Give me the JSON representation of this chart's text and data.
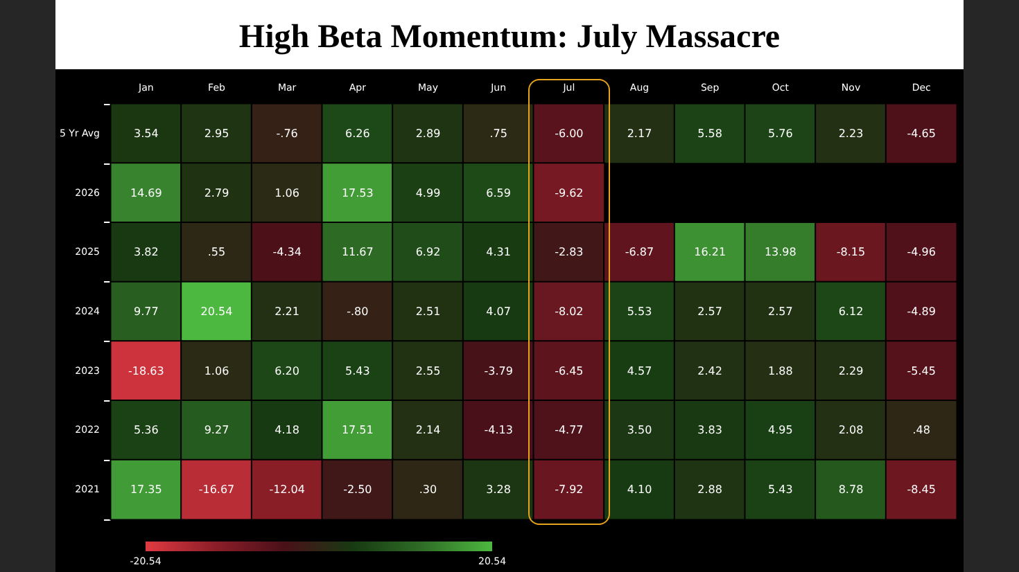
{
  "chart_data": {
    "type": "heatmap",
    "title": "High Beta Momentum: July Massacre",
    "categories": [
      "Jan",
      "Feb",
      "Mar",
      "Apr",
      "May",
      "Jun",
      "Jul",
      "Aug",
      "Sep",
      "Oct",
      "Nov",
      "Dec"
    ],
    "y_categories": [
      "5 Yr Avg",
      "2026",
      "2025",
      "2024",
      "2023",
      "2022",
      "2021"
    ],
    "cells": [
      [
        3.54,
        2.95,
        -0.76,
        6.26,
        2.89,
        0.75,
        -6.0,
        2.17,
        5.58,
        5.76,
        2.23,
        -4.65
      ],
      [
        14.69,
        2.79,
        1.06,
        17.53,
        4.99,
        6.59,
        -9.62,
        null,
        null,
        null,
        null,
        null
      ],
      [
        3.82,
        0.55,
        -4.34,
        11.67,
        6.92,
        4.31,
        -2.83,
        -6.87,
        16.21,
        13.98,
        -8.15,
        -4.96
      ],
      [
        9.77,
        20.54,
        2.21,
        -0.8,
        2.51,
        4.07,
        -8.02,
        5.53,
        2.57,
        2.57,
        6.12,
        -4.89
      ],
      [
        -18.63,
        1.06,
        6.2,
        5.43,
        2.55,
        -3.79,
        -6.45,
        4.57,
        2.42,
        1.88,
        2.29,
        -5.45
      ],
      [
        5.36,
        9.27,
        4.18,
        17.51,
        2.14,
        -4.13,
        -4.77,
        3.5,
        3.83,
        4.95,
        2.08,
        0.48
      ],
      [
        17.35,
        -16.67,
        -12.04,
        -2.5,
        0.3,
        3.28,
        -7.92,
        4.1,
        2.88,
        5.43,
        8.78,
        -8.45
      ]
    ],
    "cell_labels": [
      [
        "3.54",
        "2.95",
        "-.76",
        "6.26",
        "2.89",
        ".75",
        "-6.00",
        "2.17",
        "5.58",
        "5.76",
        "2.23",
        "-4.65"
      ],
      [
        "14.69",
        "2.79",
        "1.06",
        "17.53",
        "4.99",
        "6.59",
        "-9.62",
        null,
        null,
        null,
        null,
        null
      ],
      [
        "3.82",
        ".55",
        "-4.34",
        "11.67",
        "6.92",
        "4.31",
        "-2.83",
        "-6.87",
        "16.21",
        "13.98",
        "-8.15",
        "-4.96"
      ],
      [
        "9.77",
        "20.54",
        "2.21",
        "-.80",
        "2.51",
        "4.07",
        "-8.02",
        "5.53",
        "2.57",
        "2.57",
        "6.12",
        "-4.89"
      ],
      [
        "-18.63",
        "1.06",
        "6.20",
        "5.43",
        "2.55",
        "-3.79",
        "-6.45",
        "4.57",
        "2.42",
        "1.88",
        "2.29",
        "-5.45"
      ],
      [
        "5.36",
        "9.27",
        "4.18",
        "17.51",
        "2.14",
        "-4.13",
        "-4.77",
        "3.50",
        "3.83",
        "4.95",
        "2.08",
        ".48"
      ],
      [
        "17.35",
        "-16.67",
        "-12.04",
        "-2.50",
        ".30",
        "3.28",
        "-7.92",
        "4.10",
        "2.88",
        "5.43",
        "8.78",
        "-8.45"
      ]
    ],
    "clim": [
      -20.54,
      20.54
    ],
    "cticks": [
      -20.54,
      20.54
    ],
    "grid": false
  }
}
